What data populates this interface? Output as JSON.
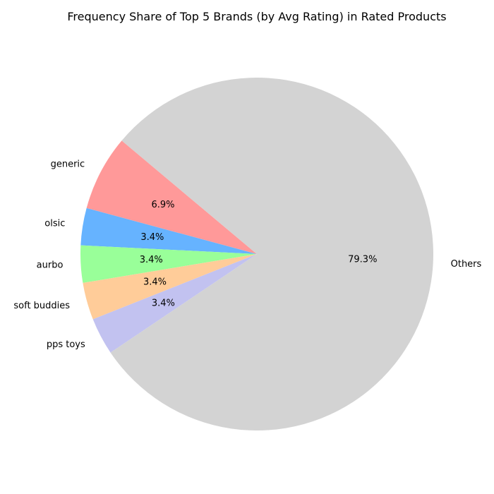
{
  "chart_data": {
    "type": "pie",
    "title": "Frequency Share of Top 5 Brands (by Avg Rating) in Rated Products",
    "categories": [
      "generic",
      "olsic",
      "aurbo",
      "soft buddies",
      "pps toys",
      "Others"
    ],
    "values": [
      6.9,
      3.4,
      3.4,
      3.4,
      3.4,
      79.3
    ],
    "value_labels": [
      "6.9%",
      "3.4%",
      "3.4%",
      "3.4%",
      "3.4%",
      "79.3%"
    ],
    "colors": [
      "#ff9999",
      "#66b3ff",
      "#99ff99",
      "#ffcc99",
      "#c2c2f0",
      "#d3d3d3"
    ],
    "start_angle_deg": 140,
    "direction": "counterclockwise",
    "legend": "none"
  }
}
